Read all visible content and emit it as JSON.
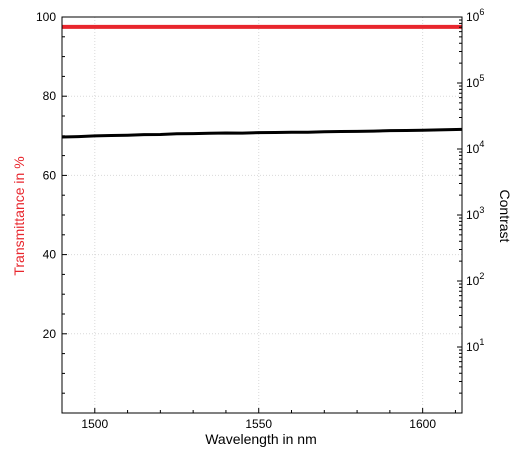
{
  "chart_data": {
    "type": "line",
    "title": "",
    "xlabel": "Wavelength in nm",
    "ylabel_left": "Transmittance in %",
    "ylabel_right": "Contrast",
    "xlim": [
      1490,
      1612
    ],
    "ylim_left": [
      0,
      100
    ],
    "ylim_right": [
      1,
      1000000
    ],
    "right_scale": "log",
    "x_ticks": [
      1500,
      1550,
      1600
    ],
    "y_ticks_left": [
      20,
      40,
      60,
      80,
      100
    ],
    "y_ticks_right": [
      {
        "base": "10",
        "exp": "1"
      },
      {
        "base": "10",
        "exp": "2"
      },
      {
        "base": "10",
        "exp": "3"
      },
      {
        "base": "10",
        "exp": "4"
      },
      {
        "base": "10",
        "exp": "5"
      },
      {
        "base": "10",
        "exp": "6"
      }
    ],
    "grid": true,
    "series": [
      {
        "axis": "left",
        "color": "#e8262d",
        "x": [
          1490,
          1500,
          1510,
          1520,
          1530,
          1540,
          1550,
          1560,
          1570,
          1580,
          1590,
          1600,
          1612
        ],
        "y": [
          97.5,
          97.5,
          97.5,
          97.5,
          97.5,
          97.5,
          97.5,
          97.5,
          97.5,
          97.5,
          97.5,
          97.5,
          97.5
        ]
      },
      {
        "axis": "right",
        "color": "#000000",
        "x": [
          1490,
          1495,
          1500,
          1505,
          1510,
          1515,
          1520,
          1525,
          1530,
          1535,
          1540,
          1545,
          1550,
          1555,
          1560,
          1565,
          1570,
          1575,
          1580,
          1585,
          1590,
          1595,
          1600,
          1605,
          1612
        ],
        "y": [
          15200,
          15400,
          15800,
          16000,
          16200,
          16500,
          16600,
          17000,
          17100,
          17300,
          17500,
          17400,
          17700,
          17800,
          18000,
          17900,
          18200,
          18400,
          18500,
          18700,
          19000,
          19100,
          19300,
          19500,
          19800
        ]
      }
    ]
  }
}
